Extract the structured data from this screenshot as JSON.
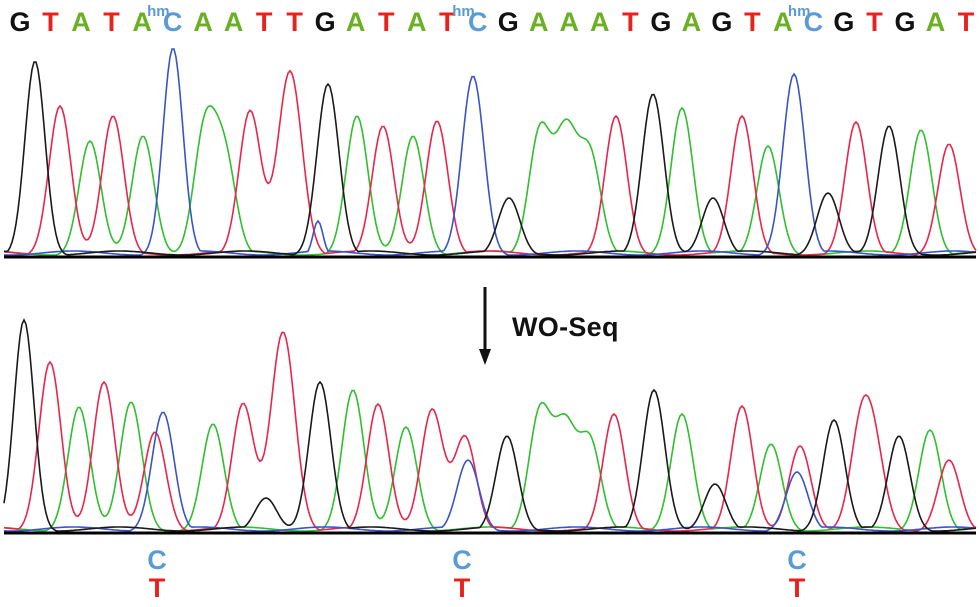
{
  "colors": {
    "G": "#111111",
    "A": "#6ab023",
    "T": "#e8211c",
    "C": "#5b9bd5",
    "trace_G": "#1a1a1a",
    "trace_A": "#2fbf2f",
    "trace_T": "#e8264c",
    "trace_C": "#3a54c8",
    "baseline": "#000000"
  },
  "sequence": [
    {
      "base": "G"
    },
    {
      "base": "T"
    },
    {
      "base": "A"
    },
    {
      "base": "T"
    },
    {
      "base": "A"
    },
    {
      "base": "C",
      "mod": "hm"
    },
    {
      "base": "A"
    },
    {
      "base": "A"
    },
    {
      "base": "T"
    },
    {
      "base": "T"
    },
    {
      "base": "G"
    },
    {
      "base": "A"
    },
    {
      "base": "T"
    },
    {
      "base": "A"
    },
    {
      "base": "T"
    },
    {
      "base": "C",
      "mod": "hm"
    },
    {
      "base": "G"
    },
    {
      "base": "A"
    },
    {
      "base": "A"
    },
    {
      "base": "A"
    },
    {
      "base": "T"
    },
    {
      "base": "G"
    },
    {
      "base": "A"
    },
    {
      "base": "G"
    },
    {
      "base": "T"
    },
    {
      "base": "A"
    },
    {
      "base": "C",
      "mod": "hm"
    },
    {
      "base": "G"
    },
    {
      "base": "T"
    },
    {
      "base": "G"
    },
    {
      "base": "A"
    },
    {
      "base": "T"
    }
  ],
  "arrow_label": "WO-Seq",
  "conversions": [
    {
      "from": "C",
      "to": "T"
    },
    {
      "from": "C",
      "to": "T"
    },
    {
      "from": "C",
      "to": "T"
    }
  ]
}
